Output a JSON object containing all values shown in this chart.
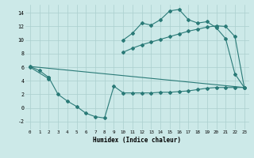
{
  "xlabel": "Humidex (Indice chaleur)",
  "bg_color": "#cce9e8",
  "grid_color": "#aacfce",
  "line_color": "#2a7a77",
  "xlim": [
    -0.5,
    23.5
  ],
  "ylim": [
    -3.2,
    15.2
  ],
  "xticks": [
    0,
    1,
    2,
    3,
    4,
    5,
    6,
    7,
    8,
    9,
    10,
    11,
    12,
    13,
    14,
    15,
    16,
    17,
    18,
    19,
    20,
    21,
    22,
    23
  ],
  "yticks": [
    -2,
    0,
    2,
    4,
    6,
    8,
    10,
    12,
    14
  ],
  "series1_x": [
    0,
    1,
    2,
    10,
    11,
    12,
    13,
    14,
    15,
    16,
    17,
    18,
    19,
    20,
    21,
    22,
    23
  ],
  "series1_y": [
    6.1,
    5.5,
    4.5,
    10.0,
    11.0,
    12.5,
    12.2,
    13.0,
    14.3,
    14.5,
    13.0,
    12.5,
    12.7,
    11.8,
    10.2,
    5.0,
    3.0
  ],
  "series2_x": [
    0,
    23
  ],
  "series2_y": [
    6.1,
    3.0
  ],
  "series3_x": [
    0,
    2,
    10,
    11,
    12,
    13,
    14,
    15,
    16,
    17,
    18,
    19,
    20,
    21,
    22,
    23
  ],
  "series3_y": [
    6.0,
    4.3,
    8.2,
    8.8,
    9.3,
    9.7,
    10.1,
    10.5,
    10.9,
    11.3,
    11.6,
    11.9,
    12.1,
    12.0,
    10.5,
    3.0
  ],
  "series4_x": [
    2,
    3,
    4,
    5,
    6,
    7,
    8,
    9,
    10,
    11,
    12,
    13,
    14,
    15,
    16,
    17,
    18,
    19,
    20,
    21,
    22,
    23
  ],
  "series4_y": [
    4.5,
    2.0,
    1.0,
    0.2,
    -0.8,
    -1.3,
    -1.5,
    3.2,
    2.2,
    2.2,
    2.2,
    2.2,
    2.3,
    2.3,
    2.4,
    2.5,
    2.7,
    2.9,
    3.0,
    3.0,
    3.0,
    3.0
  ]
}
